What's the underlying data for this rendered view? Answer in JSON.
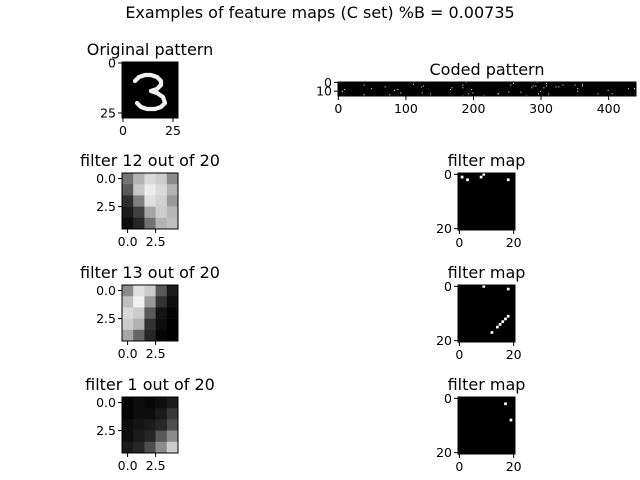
{
  "suptitle": "Examples of feature maps (C set) %B = 0.00735",
  "colormap": "gray",
  "chart_data": [
    {
      "type": "heatmap",
      "title": "Original pattern",
      "description": "28x28 handwritten digit '3', white strokes on black",
      "rows": 28,
      "cols": 28,
      "xticks": [
        0,
        25
      ],
      "yticks": [
        0,
        25
      ],
      "strokes": [
        [
          [
            6,
            9
          ],
          [
            8,
            7
          ],
          [
            11,
            6
          ],
          [
            14,
            6
          ],
          [
            17,
            7
          ],
          [
            19,
            9
          ],
          [
            19,
            11
          ],
          [
            17,
            13
          ],
          [
            14,
            14
          ]
        ],
        [
          [
            14,
            14
          ],
          [
            17,
            15
          ],
          [
            20,
            17
          ],
          [
            21,
            20
          ],
          [
            19,
            22
          ],
          [
            16,
            23
          ],
          [
            12,
            23
          ],
          [
            9,
            22
          ],
          [
            7,
            20
          ]
        ]
      ]
    },
    {
      "type": "heatmap",
      "title": "Coded pattern",
      "description": "sparse binary code, 16 rows x 441 columns",
      "rows": 16,
      "cols": 441,
      "xticks": [
        0,
        100,
        200,
        300,
        400
      ],
      "yticks": [
        0,
        10
      ],
      "density": 0.00735
    },
    {
      "type": "heatmap",
      "title": "filter 12 out of 20",
      "rows": 5,
      "cols": 5,
      "xticks": [
        "0.0",
        "2.5"
      ],
      "yticks": [
        "0.0",
        "2.5"
      ],
      "values": [
        [
          0.45,
          0.7,
          0.85,
          0.8,
          0.55
        ],
        [
          0.35,
          0.78,
          0.92,
          0.85,
          0.7
        ],
        [
          0.18,
          0.5,
          0.88,
          0.82,
          0.6
        ],
        [
          0.1,
          0.25,
          0.65,
          0.8,
          0.72
        ],
        [
          0.05,
          0.15,
          0.45,
          0.7,
          0.75
        ]
      ]
    },
    {
      "type": "heatmap",
      "title": "filter map",
      "rows": 21,
      "cols": 21,
      "xticks": [
        0,
        20
      ],
      "yticks": [
        0,
        20
      ],
      "active": [
        [
          1,
          1
        ],
        [
          0,
          9
        ],
        [
          1,
          8
        ],
        [
          2,
          3
        ],
        [
          2,
          18
        ]
      ]
    },
    {
      "type": "heatmap",
      "title": "filter 13 out of 20",
      "rows": 5,
      "cols": 5,
      "xticks": [
        "0.0",
        "2.5"
      ],
      "yticks": [
        "0.0",
        "2.5"
      ],
      "values": [
        [
          0.55,
          0.88,
          0.8,
          0.35,
          0.1
        ],
        [
          0.75,
          0.95,
          0.6,
          0.2,
          0.05
        ],
        [
          0.85,
          0.8,
          0.35,
          0.08,
          0.02
        ],
        [
          0.8,
          0.7,
          0.2,
          0.05,
          0.0
        ],
        [
          0.65,
          0.4,
          0.15,
          0.02,
          0.0
        ]
      ]
    },
    {
      "type": "heatmap",
      "title": "filter map",
      "rows": 21,
      "cols": 21,
      "xticks": [
        0,
        20
      ],
      "yticks": [
        0,
        20
      ],
      "active": [
        [
          0,
          9
        ],
        [
          1,
          18
        ],
        [
          11,
          18
        ],
        [
          12,
          17
        ],
        [
          13,
          16
        ],
        [
          14,
          15
        ],
        [
          15,
          14
        ],
        [
          17,
          12
        ]
      ]
    },
    {
      "type": "heatmap",
      "title": "filter 1 out of 20",
      "rows": 5,
      "cols": 5,
      "xticks": [
        "0.0",
        "2.5"
      ],
      "yticks": [
        "0.0",
        "2.5"
      ],
      "values": [
        [
          0.02,
          0.05,
          0.03,
          0.05,
          0.1
        ],
        [
          0.02,
          0.05,
          0.05,
          0.1,
          0.22
        ],
        [
          0.05,
          0.08,
          0.1,
          0.15,
          0.3
        ],
        [
          0.05,
          0.1,
          0.15,
          0.35,
          0.55
        ],
        [
          0.1,
          0.15,
          0.3,
          0.55,
          0.8
        ]
      ]
    },
    {
      "type": "heatmap",
      "title": "filter map",
      "rows": 21,
      "cols": 21,
      "xticks": [
        0,
        20
      ],
      "yticks": [
        0,
        20
      ],
      "active": [
        [
          2,
          17
        ],
        [
          8,
          19
        ]
      ]
    }
  ]
}
